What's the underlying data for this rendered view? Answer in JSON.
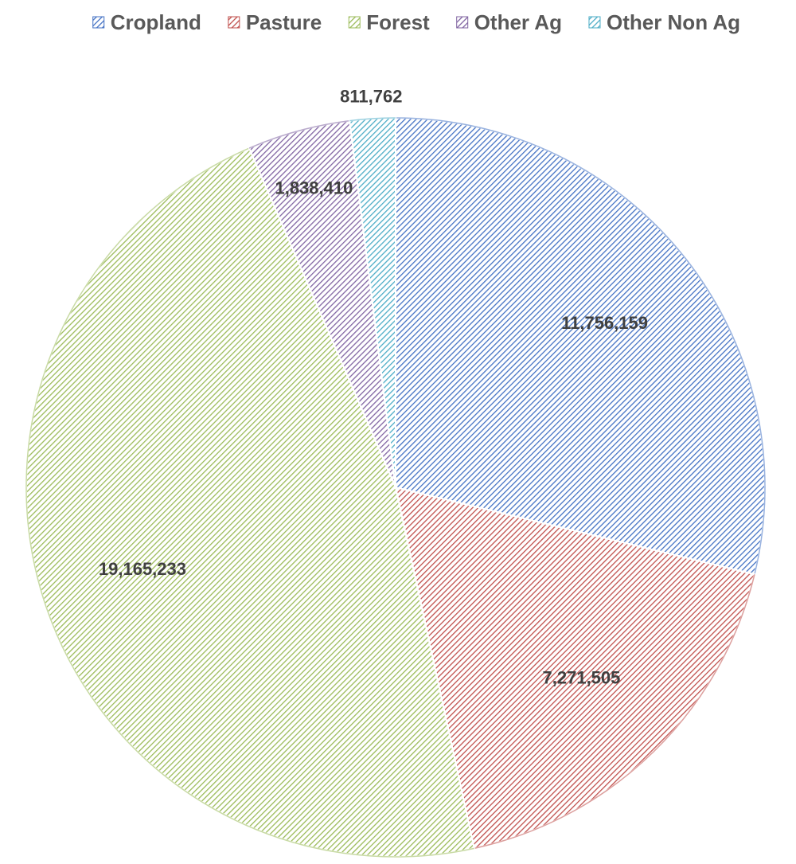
{
  "chart_data": {
    "type": "pie",
    "title": "",
    "legend_position": "top",
    "categories": [
      "Cropland",
      "Pasture",
      "Forest",
      "Other Ag",
      "Other Non Ag"
    ],
    "values": [
      11756159,
      7271505,
      19165233,
      1838410,
      811762
    ],
    "labels": [
      "11,756,159",
      "7,271,505",
      "19,165,233",
      "1,838,410",
      "811,762"
    ],
    "colors": [
      "#4472C4",
      "#C0504D",
      "#9BBB59",
      "#8064A2",
      "#4BACC6"
    ],
    "fill_pattern": "diagonal-hatch"
  }
}
